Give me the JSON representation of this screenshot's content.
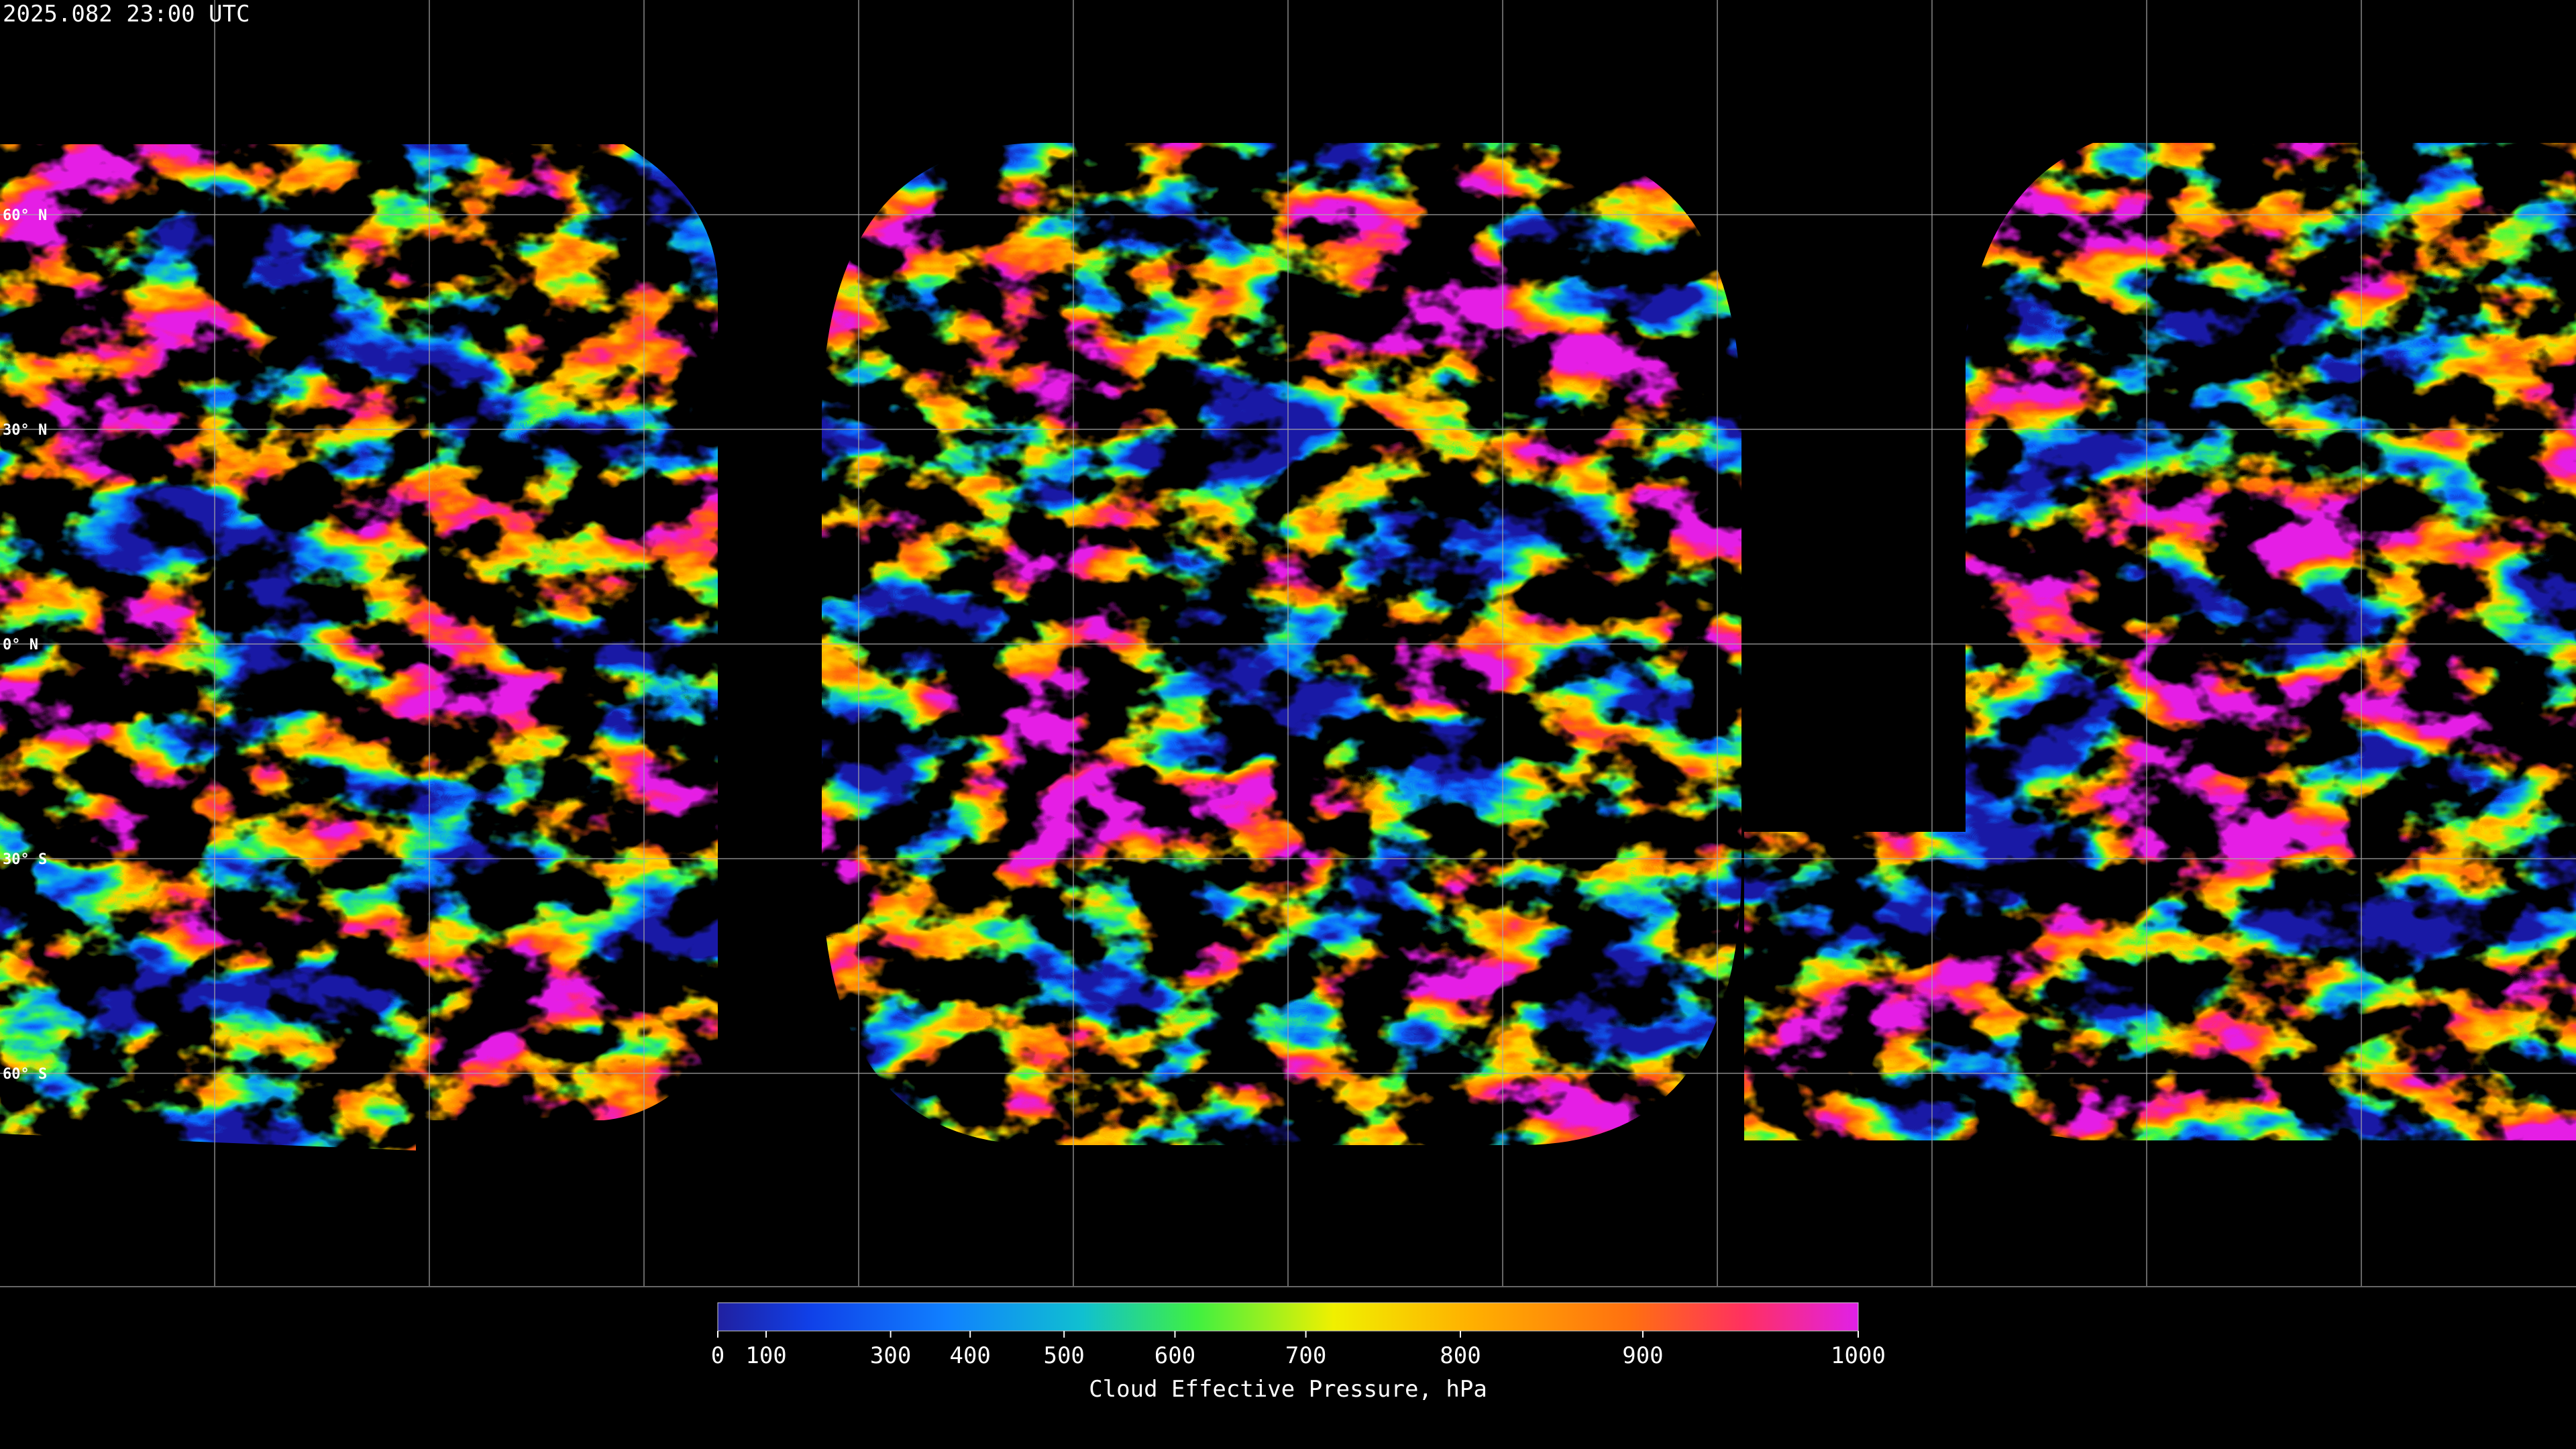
{
  "header": {
    "timestamp": "2025.082 23:00 UTC"
  },
  "map": {
    "lat_labels": [
      "60° N",
      "30° N",
      "0° N",
      "30° S",
      "60° S"
    ]
  },
  "colorbar": {
    "title": "Cloud Effective Pressure, hPa",
    "lim": [
      0,
      1000
    ],
    "ticks": [
      0,
      100,
      300,
      400,
      500,
      600,
      700,
      800,
      900,
      1000
    ]
  }
}
